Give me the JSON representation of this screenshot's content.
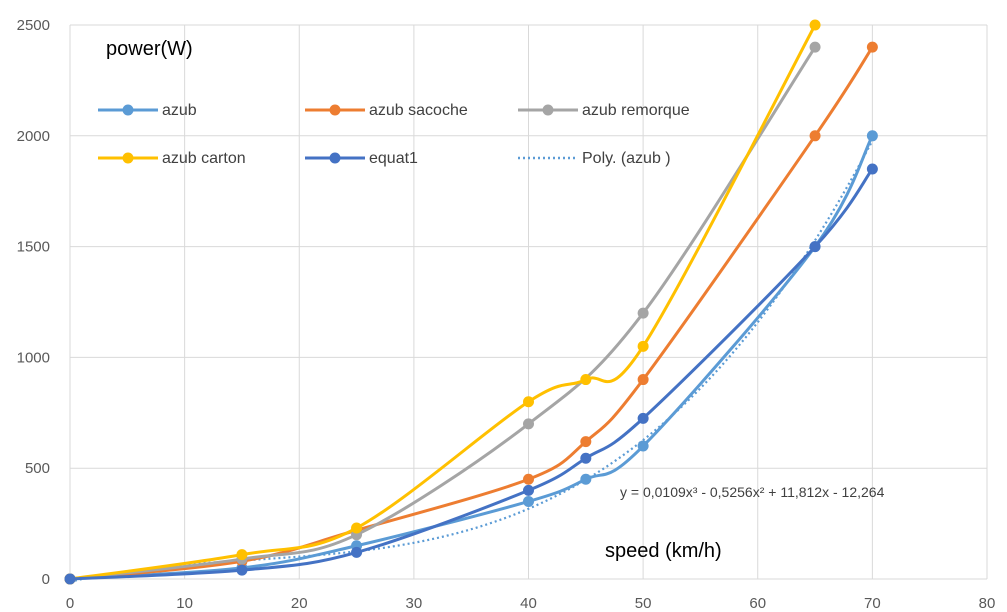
{
  "chart_data": {
    "type": "line",
    "ylabel": "power(W)",
    "xlabel": "speed (km/h)",
    "xlim": [
      0,
      80
    ],
    "ylim": [
      0,
      2500
    ],
    "x_ticks": [
      0,
      10,
      20,
      30,
      40,
      50,
      60,
      70,
      80
    ],
    "y_ticks": [
      0,
      500,
      1000,
      1500,
      2000,
      2500
    ],
    "grid": "vertical and horizontal",
    "legend_placement": "top-left, inside plot",
    "smooth_lines": true,
    "series": [
      {
        "name": "azub",
        "color": "#5B9BD5",
        "x": [
          0,
          15,
          25,
          40,
          45,
          50,
          65,
          70
        ],
        "y": [
          0,
          50,
          150,
          350,
          450,
          600,
          1500,
          2000
        ]
      },
      {
        "name": "azub sacoche",
        "color": "#ED7D31",
        "x": [
          0,
          15,
          25,
          40,
          45,
          50,
          65,
          70
        ],
        "y": [
          0,
          80,
          220,
          450,
          620,
          900,
          2000,
          2400
        ]
      },
      {
        "name": "azub remorque",
        "color": "#A5A5A5",
        "x": [
          0,
          15,
          25,
          40,
          50,
          65
        ],
        "y": [
          0,
          90,
          200,
          700,
          1200,
          2400
        ]
      },
      {
        "name": "azub carton",
        "color": "#FFC000",
        "x": [
          0,
          15,
          25,
          40,
          45,
          50,
          65
        ],
        "y": [
          0,
          110,
          230,
          800,
          900,
          1050,
          2500
        ]
      },
      {
        "name": "equat1",
        "color": "#4472C4",
        "x": [
          0,
          15,
          25,
          40,
          45,
          50,
          65,
          70
        ],
        "y": [
          0,
          40,
          120,
          400,
          545,
          725,
          1500,
          1850
        ]
      }
    ],
    "trendline": {
      "name": "Poly. (azub )",
      "of_series": "azub",
      "color": "#5B9BD5",
      "style": "dotted",
      "coefficients": [
        0.0109,
        -0.5256,
        11.812,
        -12.264
      ],
      "x_range": [
        0,
        70
      ],
      "equation": "y = 0,0109x³ - 0,5256x² + 11,812x - 12,264"
    }
  }
}
